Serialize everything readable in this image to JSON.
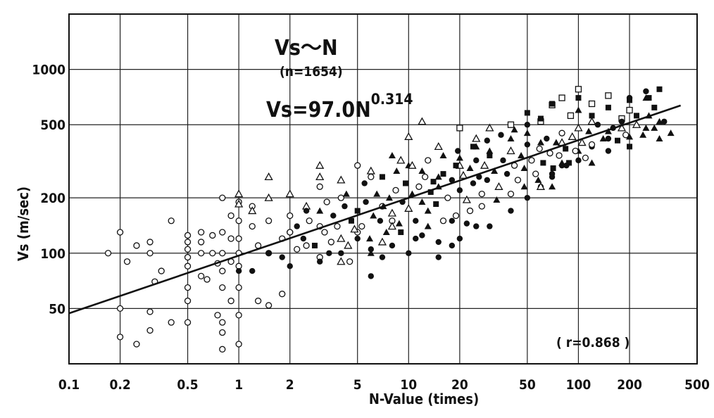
{
  "chart_data": {
    "type": "scatter",
    "scale": "log-log",
    "title": "Vs〜N",
    "subtitle": "(n=1654)",
    "equation": {
      "prefix": "Vs=97.0N",
      "exponent": "0.314"
    },
    "correlation": "( r=0.868 )",
    "xlabel": "N-Value (times)",
    "ylabel": "Vs (m/sec)",
    "xlim": [
      0.1,
      500
    ],
    "ylim": [
      25,
      2000
    ],
    "x_ticks": [
      {
        "value": 0.1,
        "label": "0.1"
      },
      {
        "value": 0.2,
        "label": "0.2"
      },
      {
        "value": 0.5,
        "label": "0.5"
      },
      {
        "value": 1,
        "label": "1"
      },
      {
        "value": 2,
        "label": "2"
      },
      {
        "value": 5,
        "label": "5"
      },
      {
        "value": 10,
        "label": "10"
      },
      {
        "value": 20,
        "label": "20"
      },
      {
        "value": 50,
        "label": "50"
      },
      {
        "value": 100,
        "label": "100"
      },
      {
        "value": 200,
        "label": "200"
      },
      {
        "value": 500,
        "label": "500"
      }
    ],
    "y_ticks": [
      {
        "value": 50,
        "label": "50"
      },
      {
        "value": 100,
        "label": "100"
      },
      {
        "value": 200,
        "label": "200"
      },
      {
        "value": 500,
        "label": "500"
      },
      {
        "value": 1000,
        "label": "1000"
      }
    ],
    "grid": true,
    "fit_line": {
      "coefficient": 97.0,
      "exponent": 0.314,
      "x_range": [
        0.1,
        400
      ]
    },
    "series": [
      {
        "marker": "open-circle",
        "points": [
          [
            0.17,
            100
          ],
          [
            0.2,
            130
          ],
          [
            0.2,
            50
          ],
          [
            0.2,
            35
          ],
          [
            0.22,
            90
          ],
          [
            0.25,
            110
          ],
          [
            0.25,
            32
          ],
          [
            0.3,
            115
          ],
          [
            0.3,
            100
          ],
          [
            0.3,
            48
          ],
          [
            0.3,
            38
          ],
          [
            0.32,
            70
          ],
          [
            0.35,
            80
          ],
          [
            0.4,
            150
          ],
          [
            0.4,
            42
          ],
          [
            0.5,
            125
          ],
          [
            0.5,
            115
          ],
          [
            0.5,
            105
          ],
          [
            0.5,
            95
          ],
          [
            0.5,
            85
          ],
          [
            0.5,
            65
          ],
          [
            0.5,
            55
          ],
          [
            0.5,
            42
          ],
          [
            0.6,
            130
          ],
          [
            0.6,
            115
          ],
          [
            0.6,
            100
          ],
          [
            0.6,
            75
          ],
          [
            0.65,
            72
          ],
          [
            0.7,
            125
          ],
          [
            0.7,
            100
          ],
          [
            0.75,
            88
          ],
          [
            0.75,
            46
          ],
          [
            0.8,
            200
          ],
          [
            0.8,
            130
          ],
          [
            0.8,
            100
          ],
          [
            0.8,
            80
          ],
          [
            0.8,
            65
          ],
          [
            0.8,
            42
          ],
          [
            0.8,
            37
          ],
          [
            0.8,
            30
          ],
          [
            0.9,
            160
          ],
          [
            0.9,
            120
          ],
          [
            0.9,
            90
          ],
          [
            0.9,
            55
          ],
          [
            1,
            190
          ],
          [
            1,
            150
          ],
          [
            1,
            120
          ],
          [
            1,
            100
          ],
          [
            1,
            85
          ],
          [
            1,
            65
          ],
          [
            1,
            46
          ],
          [
            1,
            32
          ],
          [
            1.2,
            180
          ],
          [
            1.2,
            140
          ],
          [
            1.3,
            110
          ],
          [
            1.3,
            55
          ],
          [
            1.5,
            150
          ],
          [
            1.5,
            100
          ],
          [
            1.5,
            52
          ],
          [
            1.8,
            120
          ],
          [
            1.8,
            60
          ],
          [
            2,
            160
          ],
          [
            2,
            130
          ],
          [
            2.5,
            110
          ],
          [
            3,
            230
          ],
          [
            3,
            140
          ],
          [
            3.5,
            115
          ],
          [
            4,
            200
          ],
          [
            4.5,
            90
          ],
          [
            5,
            300
          ],
          [
            5,
            130
          ],
          [
            6,
            260
          ],
          [
            7,
            180
          ],
          [
            8,
            150
          ],
          [
            3,
            95
          ],
          [
            2.2,
            105
          ]
        ]
      },
      {
        "marker": "filled-circle",
        "points": [
          [
            1,
            80
          ],
          [
            1.2,
            80
          ],
          [
            1.5,
            100
          ],
          [
            1.8,
            95
          ],
          [
            2,
            85
          ],
          [
            3,
            90
          ],
          [
            4,
            100
          ],
          [
            5,
            120
          ],
          [
            6,
            75
          ],
          [
            6,
            105
          ],
          [
            7,
            95
          ],
          [
            8,
            110
          ],
          [
            10,
            100
          ],
          [
            12,
            125
          ],
          [
            15,
            115
          ],
          [
            15,
            95
          ],
          [
            18,
            110
          ],
          [
            20,
            120
          ],
          [
            22,
            145
          ],
          [
            25,
            140
          ],
          [
            30,
            140
          ],
          [
            40,
            170
          ],
          [
            50,
            200
          ],
          [
            60,
            230
          ],
          [
            70,
            260
          ],
          [
            80,
            300
          ],
          [
            100,
            320
          ],
          [
            120,
            380
          ],
          [
            150,
            420
          ],
          [
            200,
            700
          ],
          [
            250,
            760
          ],
          [
            18,
            150
          ]
        ]
      },
      {
        "marker": "open-triangle",
        "points": [
          [
            1,
            210
          ],
          [
            1,
            185
          ],
          [
            1.2,
            170
          ],
          [
            1.5,
            260
          ],
          [
            1.5,
            200
          ],
          [
            2,
            210
          ],
          [
            2.5,
            180
          ],
          [
            3,
            300
          ],
          [
            3,
            260
          ],
          [
            4,
            250
          ],
          [
            6,
            280
          ],
          [
            9,
            320
          ],
          [
            10,
            430
          ],
          [
            12,
            520
          ],
          [
            15,
            380
          ],
          [
            20,
            300
          ],
          [
            25,
            420
          ],
          [
            30,
            480
          ],
          [
            60,
            230
          ],
          [
            80,
            400
          ],
          [
            120,
            520
          ],
          [
            180,
            480
          ],
          [
            4,
            90
          ],
          [
            8,
            140
          ]
        ]
      },
      {
        "marker": "filled-triangle",
        "points": [
          [
            8,
            340
          ],
          [
            10,
            300
          ],
          [
            12,
            280
          ],
          [
            15,
            260
          ],
          [
            20,
            330
          ],
          [
            25,
            380
          ],
          [
            30,
            360
          ],
          [
            40,
            420
          ],
          [
            50,
            450
          ],
          [
            60,
            400
          ],
          [
            70,
            230
          ],
          [
            80,
            310
          ],
          [
            100,
            360
          ],
          [
            120,
            310
          ],
          [
            150,
            460
          ],
          [
            200,
            430
          ],
          [
            250,
            480
          ],
          [
            300,
            520
          ],
          [
            350,
            450
          ],
          [
            250,
            700
          ],
          [
            100,
            600
          ]
        ]
      },
      {
        "marker": "open-square",
        "points": [
          [
            20,
            480
          ],
          [
            40,
            500
          ],
          [
            60,
            520
          ],
          [
            80,
            700
          ],
          [
            100,
            780
          ],
          [
            120,
            650
          ],
          [
            150,
            720
          ],
          [
            180,
            540
          ],
          [
            200,
            600
          ],
          [
            90,
            560
          ],
          [
            70,
            640
          ]
        ]
      },
      {
        "marker": "filled-square",
        "points": [
          [
            50,
            580
          ],
          [
            70,
            650
          ],
          [
            100,
            700
          ],
          [
            120,
            560
          ],
          [
            150,
            620
          ],
          [
            200,
            680
          ],
          [
            260,
            700
          ],
          [
            300,
            780
          ],
          [
            280,
            620
          ],
          [
            220,
            560
          ]
        ]
      },
      {
        "marker": "cluster",
        "points": [
          [
            2,
            130
          ],
          [
            2.2,
            140
          ],
          [
            2.4,
            120
          ],
          [
            2.6,
            150
          ],
          [
            2.8,
            110
          ],
          [
            3,
            170
          ],
          [
            3.2,
            130
          ],
          [
            3.4,
            100
          ],
          [
            3.6,
            160
          ],
          [
            3.8,
            140
          ],
          [
            4,
            120
          ],
          [
            4.2,
            180
          ],
          [
            4.4,
            110
          ],
          [
            4.6,
            150
          ],
          [
            4.8,
            135
          ],
          [
            5,
            170
          ],
          [
            5.3,
            140
          ],
          [
            5.6,
            190
          ],
          [
            5.9,
            120
          ],
          [
            6.2,
            160
          ],
          [
            6.5,
            210
          ],
          [
            6.8,
            150
          ],
          [
            7.1,
            180
          ],
          [
            7.4,
            130
          ],
          [
            7.7,
            200
          ],
          [
            8,
            165
          ],
          [
            8.4,
            220
          ],
          [
            8.8,
            145
          ],
          [
            9.2,
            190
          ],
          [
            9.6,
            240
          ],
          [
            10,
            175
          ],
          [
            10.5,
            210
          ],
          [
            11,
            150
          ],
          [
            11.5,
            230
          ],
          [
            12,
            190
          ],
          [
            12.5,
            260
          ],
          [
            13,
            170
          ],
          [
            13.5,
            215
          ],
          [
            14,
            245
          ],
          [
            14.5,
            185
          ],
          [
            15,
            230
          ],
          [
            16,
            270
          ],
          [
            17,
            200
          ],
          [
            18,
            250
          ],
          [
            19,
            300
          ],
          [
            20,
            220
          ],
          [
            21,
            265
          ],
          [
            22,
            195
          ],
          [
            23,
            290
          ],
          [
            24,
            240
          ],
          [
            25,
            320
          ],
          [
            26,
            260
          ],
          [
            27,
            210
          ],
          [
            28,
            300
          ],
          [
            29,
            250
          ],
          [
            30,
            340
          ],
          [
            32,
            280
          ],
          [
            34,
            230
          ],
          [
            36,
            320
          ],
          [
            38,
            270
          ],
          [
            40,
            360
          ],
          [
            42,
            300
          ],
          [
            44,
            250
          ],
          [
            46,
            340
          ],
          [
            48,
            290
          ],
          [
            50,
            390
          ],
          [
            53,
            320
          ],
          [
            56,
            270
          ],
          [
            59,
            370
          ],
          [
            62,
            310
          ],
          [
            65,
            420
          ],
          [
            68,
            350
          ],
          [
            71,
            290
          ],
          [
            74,
            400
          ],
          [
            77,
            340
          ],
          [
            80,
            450
          ],
          [
            84,
            370
          ],
          [
            88,
            310
          ],
          [
            92,
            430
          ],
          [
            96,
            360
          ],
          [
            100,
            480
          ],
          [
            105,
            400
          ],
          [
            110,
            330
          ],
          [
            115,
            460
          ],
          [
            120,
            390
          ],
          [
            130,
            500
          ],
          [
            140,
            420
          ],
          [
            150,
            360
          ],
          [
            160,
            480
          ],
          [
            170,
            410
          ],
          [
            180,
            520
          ],
          [
            190,
            440
          ],
          [
            200,
            380
          ],
          [
            220,
            500
          ],
          [
            240,
            440
          ],
          [
            260,
            560
          ],
          [
            280,
            480
          ],
          [
            300,
            420
          ],
          [
            320,
            520
          ],
          [
            6,
            100
          ],
          [
            7,
            115
          ],
          [
            9,
            130
          ],
          [
            11,
            120
          ],
          [
            13,
            140
          ],
          [
            16,
            150
          ],
          [
            19,
            160
          ],
          [
            23,
            170
          ],
          [
            27,
            180
          ],
          [
            33,
            195
          ],
          [
            40,
            210
          ],
          [
            48,
            230
          ],
          [
            58,
            250
          ],
          [
            70,
            270
          ],
          [
            85,
            300
          ],
          [
            2.5,
            170
          ],
          [
            3.3,
            190
          ],
          [
            4.3,
            210
          ],
          [
            5.5,
            240
          ],
          [
            7,
            260
          ],
          [
            8.5,
            280
          ],
          [
            10.5,
            300
          ],
          [
            13,
            320
          ],
          [
            16,
            340
          ],
          [
            19.5,
            360
          ],
          [
            24,
            380
          ],
          [
            29,
            410
          ],
          [
            35,
            440
          ],
          [
            42,
            470
          ],
          [
            50,
            500
          ],
          [
            60,
            540
          ]
        ]
      }
    ]
  }
}
